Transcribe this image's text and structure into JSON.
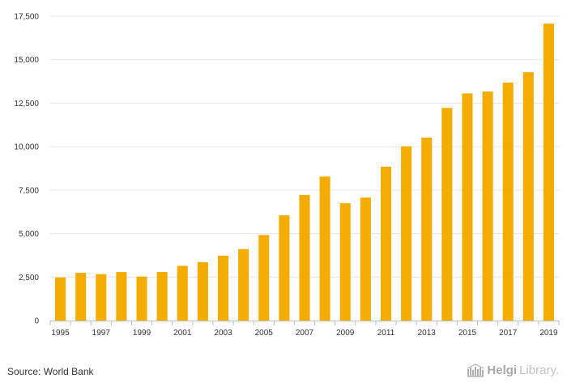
{
  "chart_data": {
    "type": "bar",
    "categories": [
      "1995",
      "1996",
      "1997",
      "1998",
      "1999",
      "2000",
      "2001",
      "2002",
      "2003",
      "2004",
      "2005",
      "2006",
      "2007",
      "2008",
      "2009",
      "2010",
      "2011",
      "2012",
      "2013",
      "2014",
      "2015",
      "2016",
      "2017",
      "2018",
      "2019"
    ],
    "values": [
      2480,
      2750,
      2670,
      2790,
      2530,
      2790,
      3150,
      3360,
      3730,
      4110,
      4920,
      6050,
      7220,
      8280,
      6750,
      7070,
      8850,
      10020,
      10520,
      12230,
      13060,
      13170,
      13680,
      14280,
      17070
    ],
    "x_tick_labels": [
      "1995",
      "1997",
      "1999",
      "2001",
      "2003",
      "2005",
      "2007",
      "2009",
      "2011",
      "2013",
      "2015",
      "2017",
      "2019"
    ],
    "y_ticks": [
      0,
      2500,
      5000,
      7500,
      10000,
      12500,
      15000,
      17500
    ],
    "y_tick_labels": [
      "0",
      "2,500",
      "5,000",
      "7,500",
      "10,000",
      "12,500",
      "15,000",
      "17,500"
    ],
    "ylim": [
      0,
      17500
    ],
    "title": "",
    "xlabel": "",
    "ylabel": "",
    "grid": true,
    "bar_color": "#f5ac00"
  },
  "footer": {
    "source": "Source: World Bank",
    "brand_helgi": "Helgi",
    "brand_library": "Library."
  }
}
